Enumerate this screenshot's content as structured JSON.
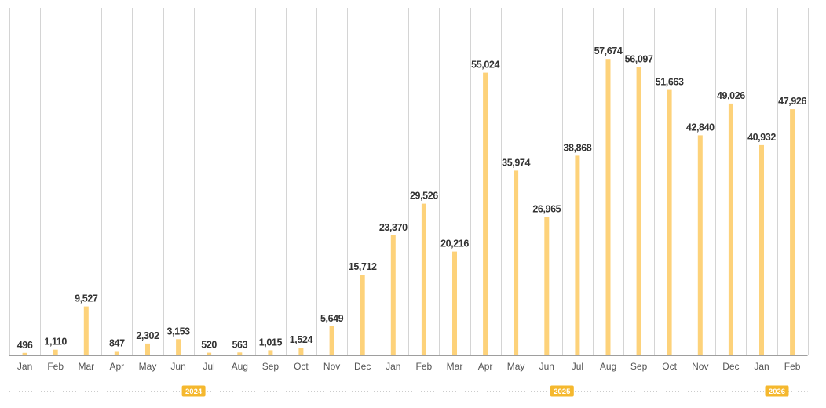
{
  "chart_data": {
    "type": "bar",
    "title": "",
    "xlabel": "",
    "ylabel": "",
    "ylim": [
      0,
      60000
    ],
    "grid": true,
    "categories": [
      "Jan",
      "Feb",
      "Mar",
      "Apr",
      "May",
      "Jun",
      "Jul",
      "Aug",
      "Sep",
      "Oct",
      "Nov",
      "Dec",
      "Jan",
      "Feb",
      "Mar",
      "Apr",
      "May",
      "Jun",
      "Jul",
      "Aug",
      "Sep",
      "Oct",
      "Nov",
      "Dec",
      "Jan",
      "Feb"
    ],
    "values": [
      496,
      1110,
      9527,
      847,
      2302,
      3153,
      520,
      563,
      1015,
      1524,
      5649,
      15712,
      23370,
      29526,
      20216,
      55024,
      35974,
      26965,
      38868,
      57674,
      56097,
      51663,
      42840,
      49026,
      40932,
      47926
    ],
    "value_labels": [
      "496",
      "1,110",
      "9,527",
      "847",
      "2,302",
      "3,153",
      "520",
      "563",
      "1,015",
      "1,524",
      "5,649",
      "15,712",
      "23,370",
      "29,526",
      "20,216",
      "55,024",
      "35,974",
      "26,965",
      "38,868",
      "57,674",
      "56,097",
      "51,663",
      "42,840",
      "49,026",
      "40,932",
      "47,926"
    ],
    "years": [
      {
        "label": "2024",
        "start_index": 0,
        "end_index": 11
      },
      {
        "label": "2025",
        "start_index": 12,
        "end_index": 23
      },
      {
        "label": "2026",
        "start_index": 24,
        "end_index": 25
      }
    ],
    "colors": {
      "bar": "#fdd27a",
      "year_badge": "#f5b82e"
    }
  }
}
